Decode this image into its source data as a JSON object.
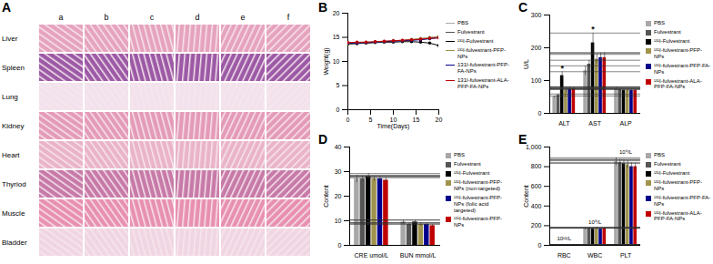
{
  "image_panel": {
    "panel": "A",
    "columns": [
      "a",
      "b",
      "c",
      "d",
      "e",
      "f"
    ],
    "rows": [
      "Liver",
      "Spleen",
      "Lung",
      "Kidney",
      "Heart",
      "Thyriod",
      "Muscle",
      "Bladder"
    ]
  },
  "chart_data": [
    {
      "panel": "B",
      "type": "line",
      "x_label": "Time(Days)",
      "y_label": "Weight(g)",
      "x": [
        0,
        2,
        4,
        6,
        8,
        10,
        12,
        14,
        16,
        18,
        20
      ],
      "xlim": [
        0,
        20
      ],
      "xticks": [
        0,
        5,
        10,
        15,
        20
      ],
      "ylim": [
        0,
        20
      ],
      "yticks": [
        0,
        5,
        10,
        15,
        20
      ],
      "marker": "circle",
      "series": [
        {
          "name": "PBS",
          "color": "#a8a8a8",
          "values": [
            13.8,
            13.9,
            14.0,
            14.1,
            14.2,
            14.3,
            14.4,
            14.6,
            14.8,
            15.0,
            15.2
          ]
        },
        {
          "name": "Fulvestrant",
          "color": "#555555",
          "values": [
            13.7,
            13.8,
            13.9,
            14.0,
            14.1,
            14.2,
            14.3,
            14.4,
            14.6,
            14.8,
            15.0
          ]
        },
        {
          "name": "¹³¹I-Fulvestrant",
          "color": "#000000",
          "values": [
            13.6,
            13.7,
            13.8,
            13.9,
            14.0,
            14.0,
            14.1,
            14.1,
            14.0,
            13.8,
            13.3
          ]
        },
        {
          "name": "¹³¹I-fulvestrant-PFP-NPs",
          "color": "#a0934c",
          "values": [
            13.7,
            13.8,
            13.9,
            14.0,
            14.1,
            14.2,
            14.3,
            14.5,
            14.7,
            14.9,
            15.1
          ]
        },
        {
          "name": "131I-fulvestrant-PFP-FA-NPs",
          "color": "#00008b",
          "values": [
            13.8,
            13.8,
            13.9,
            14.0,
            14.1,
            14.2,
            14.3,
            14.4,
            14.5,
            14.7,
            14.9
          ]
        },
        {
          "name": "131I-fulvestrant-ALA-PFP-FA-NPs",
          "color": "#c00000",
          "values": [
            13.9,
            14.0,
            14.0,
            14.1,
            14.2,
            14.3,
            14.4,
            14.5,
            14.6,
            14.8,
            14.9
          ]
        }
      ]
    },
    {
      "panel": "C",
      "type": "bar",
      "y_label": "U/L",
      "categories": [
        "ALT",
        "AST",
        "ALP"
      ],
      "ylim": [
        0,
        300
      ],
      "yticks": [
        0,
        100,
        200,
        300
      ],
      "annotations": [
        {
          "category": "ALT",
          "series": "¹³¹I-Fulvestrant",
          "text": "*"
        },
        {
          "category": "AST",
          "series": "¹³¹I-Fulvestrant",
          "text": "*"
        }
      ],
      "series": [
        {
          "name": "PBS",
          "color": "#a8a8a8",
          "values": [
            50,
            130,
            75
          ],
          "errors": [
            3,
            15,
            5
          ]
        },
        {
          "name": "Fulvestrant",
          "color": "#555555",
          "values": [
            55,
            150,
            72
          ],
          "errors": [
            4,
            12,
            4
          ]
        },
        {
          "name": "¹³¹I-Fulvestrant",
          "color": "#000000",
          "values": [
            115,
            215,
            70
          ],
          "errors": [
            12,
            30,
            4
          ]
        },
        {
          "name": "¹³¹I-fulvestrant-PFP-NPs",
          "color": "#a0934c",
          "values": [
            70,
            165,
            70
          ],
          "errors": [
            8,
            15,
            4
          ]
        },
        {
          "name": "¹³¹I-fulvestrant-PFP-FA-NPs",
          "color": "#00008b",
          "values": [
            75,
            170,
            70
          ],
          "errors": [
            6,
            14,
            4
          ]
        },
        {
          "name": "¹³¹I-fulvestrant-ALA-PFP-FA-NPs",
          "color": "#c00000",
          "values": [
            75,
            170,
            70
          ],
          "errors": [
            5,
            15,
            4
          ]
        }
      ]
    },
    {
      "panel": "D",
      "type": "bar",
      "y_label": "Content",
      "categories": [
        "CRE umol/L",
        "BUN mmol/L"
      ],
      "ylim": [
        0,
        40
      ],
      "yticks": [
        0,
        10,
        20,
        30,
        40
      ],
      "series": [
        {
          "name": "PBS",
          "color": "#a8a8a8",
          "values": [
            27,
            9.5
          ],
          "errors": [
            1.5,
            0.8
          ]
        },
        {
          "name": "Fulvestrant",
          "color": "#555555",
          "values": [
            27,
            8.5
          ],
          "errors": [
            1.2,
            0.6
          ]
        },
        {
          "name": "¹³¹I-Fulvestrant",
          "color": "#000000",
          "values": [
            28,
            9.5
          ],
          "errors": [
            1.2,
            0.8
          ]
        },
        {
          "name": "¹³¹I-fulvestrant-PFP-NPs (non-targeted)",
          "color": "#a0934c",
          "values": [
            27,
            8.5
          ],
          "errors": [
            1,
            0.6
          ]
        },
        {
          "name": "¹³¹I-fulvestrant-PFP-NPs (folic acid targeted)",
          "color": "#00008b",
          "values": [
            27,
            8.5
          ],
          "errors": [
            1,
            0.6
          ]
        },
        {
          "name": "¹³¹I-fulvestrant-PFP-NPs",
          "color": "#c00000",
          "values": [
            26.5,
            8
          ],
          "errors": [
            1,
            0.5
          ]
        }
      ]
    },
    {
      "panel": "E",
      "type": "bar",
      "y_label": "Content",
      "categories": [
        "RBC",
        "WBC",
        "PLT"
      ],
      "group_labels": [
        "10¹²/L",
        "10⁹/L",
        "10⁹/L"
      ],
      "ylim": [
        0,
        1000
      ],
      "yticks": [
        0,
        200,
        400,
        600,
        800,
        1000
      ],
      "series": [
        {
          "name": "PBS",
          "color": "#a8a8a8",
          "values": [
            8,
            170,
            850
          ],
          "errors": [
            1,
            10,
            40
          ]
        },
        {
          "name": "Fulvestrant",
          "color": "#555555",
          "values": [
            8,
            170,
            840
          ],
          "errors": [
            1,
            10,
            35
          ]
        },
        {
          "name": "¹³¹I-Fulvestrant",
          "color": "#000000",
          "values": [
            7.5,
            165,
            830
          ],
          "errors": [
            1,
            10,
            40
          ]
        },
        {
          "name": "¹³¹I-fulvestrant-PFP-NPs",
          "color": "#a0934c",
          "values": [
            8,
            170,
            820
          ],
          "errors": [
            1,
            10,
            40
          ]
        },
        {
          "name": "¹³¹I-fulvestrant-PFP-FA-NPs",
          "color": "#00008b",
          "values": [
            8,
            165,
            800
          ],
          "errors": [
            1,
            10,
            40
          ]
        },
        {
          "name": "¹³¹I-fulvestrant-ALA-PFP-FA-NPs",
          "color": "#c00000",
          "values": [
            7.5,
            170,
            800
          ],
          "errors": [
            1,
            10,
            35
          ]
        }
      ]
    }
  ]
}
